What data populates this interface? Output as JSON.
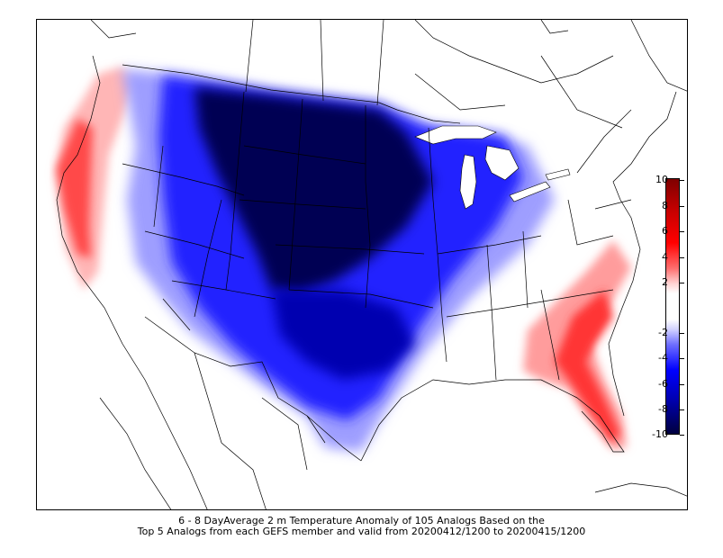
{
  "caption": {
    "line1": "6 - 8 DayAverage 2 m Temperature Anomaly of 105 Analogs Based on the",
    "line2": "Top 5 Analogs from each GEFS member and valid from 20200412/1200 to 20200415/1200"
  },
  "colorbar": {
    "ticks": [
      "10",
      "8",
      "6",
      "4",
      "2",
      "-2",
      "-4",
      "-6",
      "-8",
      "-10"
    ],
    "colors": {
      "max": "#7f0000",
      "warm": "#ff0000",
      "neutral": "#ffffff",
      "cool": "#0000ff",
      "min": "#00003f"
    }
  },
  "map": {
    "variable": "2 m Temperature Anomaly",
    "regions": [
      {
        "name": "pacific-coast-warm",
        "anomaly": 6
      },
      {
        "name": "northern-plains-cold",
        "anomaly": -10
      },
      {
        "name": "southern-plains-cold",
        "anomaly": -8
      },
      {
        "name": "great-lakes-cold",
        "anomaly": -6
      },
      {
        "name": "southeast-warm",
        "anomaly": 6
      },
      {
        "name": "florida-warm",
        "anomaly": 7
      }
    ]
  }
}
